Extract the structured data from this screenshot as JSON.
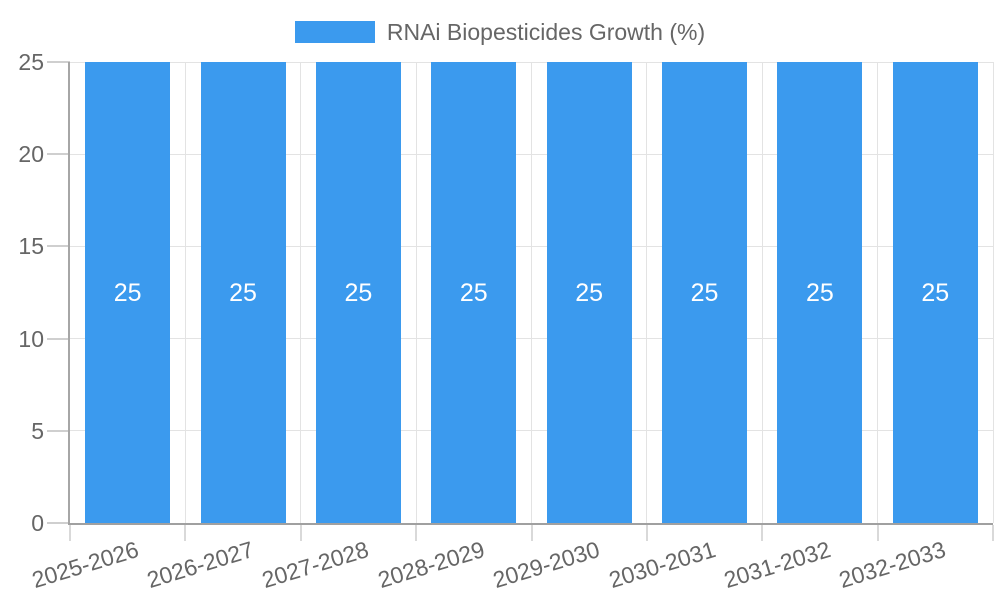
{
  "legend": {
    "label": "RNAi Biopesticides Growth (%)"
  },
  "colors": {
    "bar": "#3b9aee",
    "grid": "#e3e3e3",
    "axis": "#a0a0a0",
    "tick_text": "#666666",
    "bar_label_text": "#ffffff"
  },
  "chart_data": {
    "type": "bar",
    "title": "",
    "categories": [
      "2025-2026",
      "2026-2027",
      "2027-2028",
      "2028-2029",
      "2029-2030",
      "2030-2031",
      "2031-2032",
      "2032-2033"
    ],
    "series": [
      {
        "name": "RNAi Biopesticides Growth (%)",
        "values": [
          25,
          25,
          25,
          25,
          25,
          25,
          25,
          25
        ]
      }
    ],
    "xlabel": "",
    "ylabel": "",
    "ylim": [
      0,
      25
    ],
    "y_ticks": [
      0,
      5,
      10,
      15,
      20,
      25
    ],
    "grid": true,
    "legend_position": "top",
    "show_value_labels": true
  }
}
